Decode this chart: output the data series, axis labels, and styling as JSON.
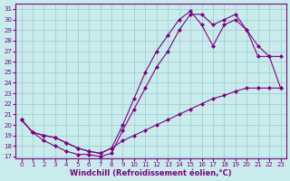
{
  "xlabel": "Windchill (Refroidissement éolien,°C)",
  "bg_color": "#c8ecec",
  "line_color": "#800080",
  "grid_color": "#a0c8d0",
  "ylim": [
    17,
    31
  ],
  "xlim": [
    0,
    23
  ],
  "yticks": [
    17,
    18,
    19,
    20,
    21,
    22,
    23,
    24,
    25,
    26,
    27,
    28,
    29,
    30,
    31
  ],
  "xticks": [
    0,
    1,
    2,
    3,
    4,
    5,
    6,
    7,
    8,
    9,
    10,
    11,
    12,
    13,
    14,
    15,
    16,
    17,
    18,
    19,
    20,
    21,
    22,
    23
  ],
  "line1_x": [
    0,
    1,
    2,
    3,
    4,
    5,
    6,
    7,
    8,
    9,
    10,
    11,
    12,
    13,
    14,
    15,
    16,
    17,
    18,
    19,
    20,
    21,
    22,
    23
  ],
  "line1_y": [
    20.5,
    19.3,
    19.0,
    18.8,
    18.3,
    17.8,
    17.5,
    17.3,
    17.8,
    18.5,
    19.0,
    19.5,
    20.0,
    20.5,
    21.0,
    21.5,
    22.0,
    22.5,
    22.8,
    23.2,
    23.5,
    23.5,
    23.5,
    23.5
  ],
  "line2_x": [
    0,
    1,
    2,
    3,
    4,
    5,
    6,
    7,
    8,
    9,
    10,
    11,
    12,
    13,
    14,
    15,
    16,
    17,
    18,
    19,
    20,
    21,
    22,
    23
  ],
  "line2_y": [
    20.5,
    19.3,
    19.0,
    18.8,
    18.3,
    17.8,
    17.5,
    17.3,
    17.8,
    20.0,
    22.5,
    25.0,
    27.0,
    28.5,
    30.0,
    30.8,
    29.5,
    27.5,
    29.5,
    30.0,
    29.0,
    27.5,
    26.5,
    26.5
  ],
  "line3_x": [
    0,
    1,
    2,
    3,
    4,
    5,
    6,
    7,
    8,
    9,
    10,
    11,
    12,
    13,
    14,
    15,
    16,
    17,
    18,
    19,
    20,
    21,
    22,
    23
  ],
  "line3_y": [
    20.5,
    19.3,
    18.5,
    18.0,
    17.5,
    17.2,
    17.2,
    17.0,
    17.3,
    19.5,
    21.5,
    23.5,
    25.5,
    27.0,
    29.0,
    30.5,
    30.5,
    29.5,
    30.0,
    30.5,
    29.0,
    26.5,
    26.5,
    23.5
  ],
  "marker": "D",
  "marker_size": 2,
  "linewidth": 0.8,
  "tick_fontsize": 5,
  "label_fontsize": 6
}
